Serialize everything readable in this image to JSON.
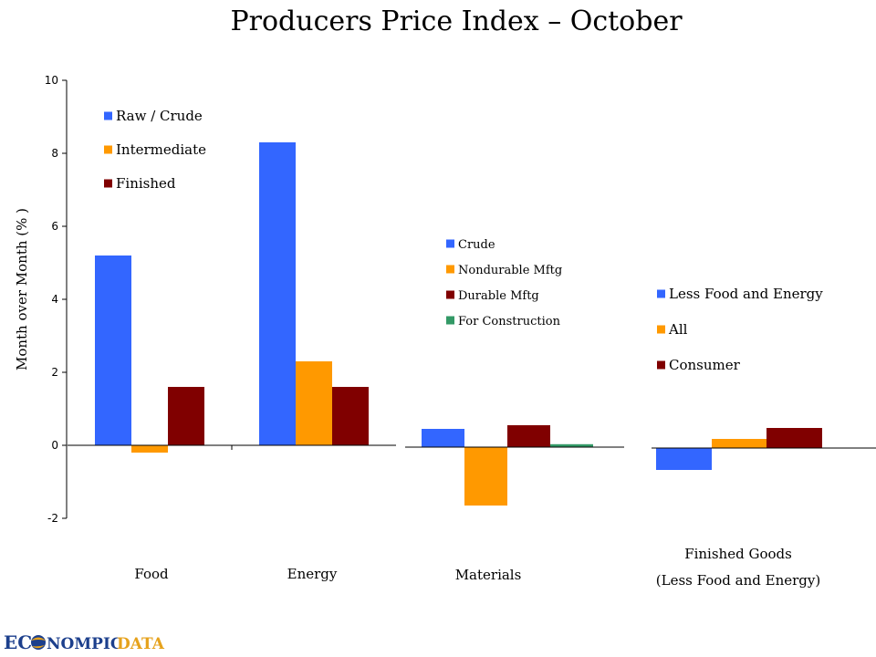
{
  "title": "Producers Price Index – October",
  "colors": {
    "blue": "#3366FF",
    "orange": "#FF9900",
    "maroon": "#800000",
    "green": "#339966",
    "logo_blue": "#1c3f8c",
    "logo_orange": "#e6a21c"
  },
  "logo": {
    "part1": "EC",
    "part2": "NOMPIC",
    "part3": "DATA"
  },
  "chart_data": {
    "type": "bar",
    "ylabel": "Month over Month (% )",
    "ylim": [
      -2,
      10
    ],
    "yticks": [
      -2,
      0,
      2,
      4,
      6,
      8,
      10
    ],
    "tick_labels": [
      "-2",
      "0",
      "2",
      "4",
      "6",
      "8",
      "10"
    ],
    "groups": [
      {
        "category_lines": [
          "Food"
        ],
        "values": [
          5.2,
          -0.2,
          1.6
        ],
        "color_keys": [
          "blue",
          "orange",
          "maroon"
        ]
      },
      {
        "category_lines": [
          "Energy"
        ],
        "values": [
          8.3,
          2.3,
          1.6
        ],
        "color_keys": [
          "blue",
          "orange",
          "maroon"
        ]
      },
      {
        "category_lines": [
          "Materials"
        ],
        "values": [
          0.5,
          -1.6,
          0.6,
          0.08
        ],
        "color_keys": [
          "blue",
          "orange",
          "maroon",
          "green"
        ]
      },
      {
        "category_lines": [
          "Finished Goods",
          "(Less Food and Energy)"
        ],
        "values": [
          -0.6,
          0.25,
          0.55
        ],
        "color_keys": [
          "blue",
          "orange",
          "maroon"
        ]
      }
    ],
    "legends": [
      {
        "entries": [
          {
            "label": "Raw / Crude",
            "color_key": "blue"
          },
          {
            "label": "Intermediate",
            "color_key": "orange"
          },
          {
            "label": "Finished",
            "color_key": "maroon"
          }
        ]
      },
      {
        "entries": [
          {
            "label": "Crude",
            "color_key": "blue"
          },
          {
            "label": "Nondurable Mftg",
            "color_key": "orange"
          },
          {
            "label": "Durable Mftg",
            "color_key": "maroon"
          },
          {
            "label": "For Construction",
            "color_key": "green"
          }
        ]
      },
      {
        "entries": [
          {
            "label": "Less Food and Energy",
            "color_key": "blue"
          },
          {
            "label": "All",
            "color_key": "orange"
          },
          {
            "label": "Consumer",
            "color_key": "maroon"
          }
        ]
      }
    ]
  }
}
